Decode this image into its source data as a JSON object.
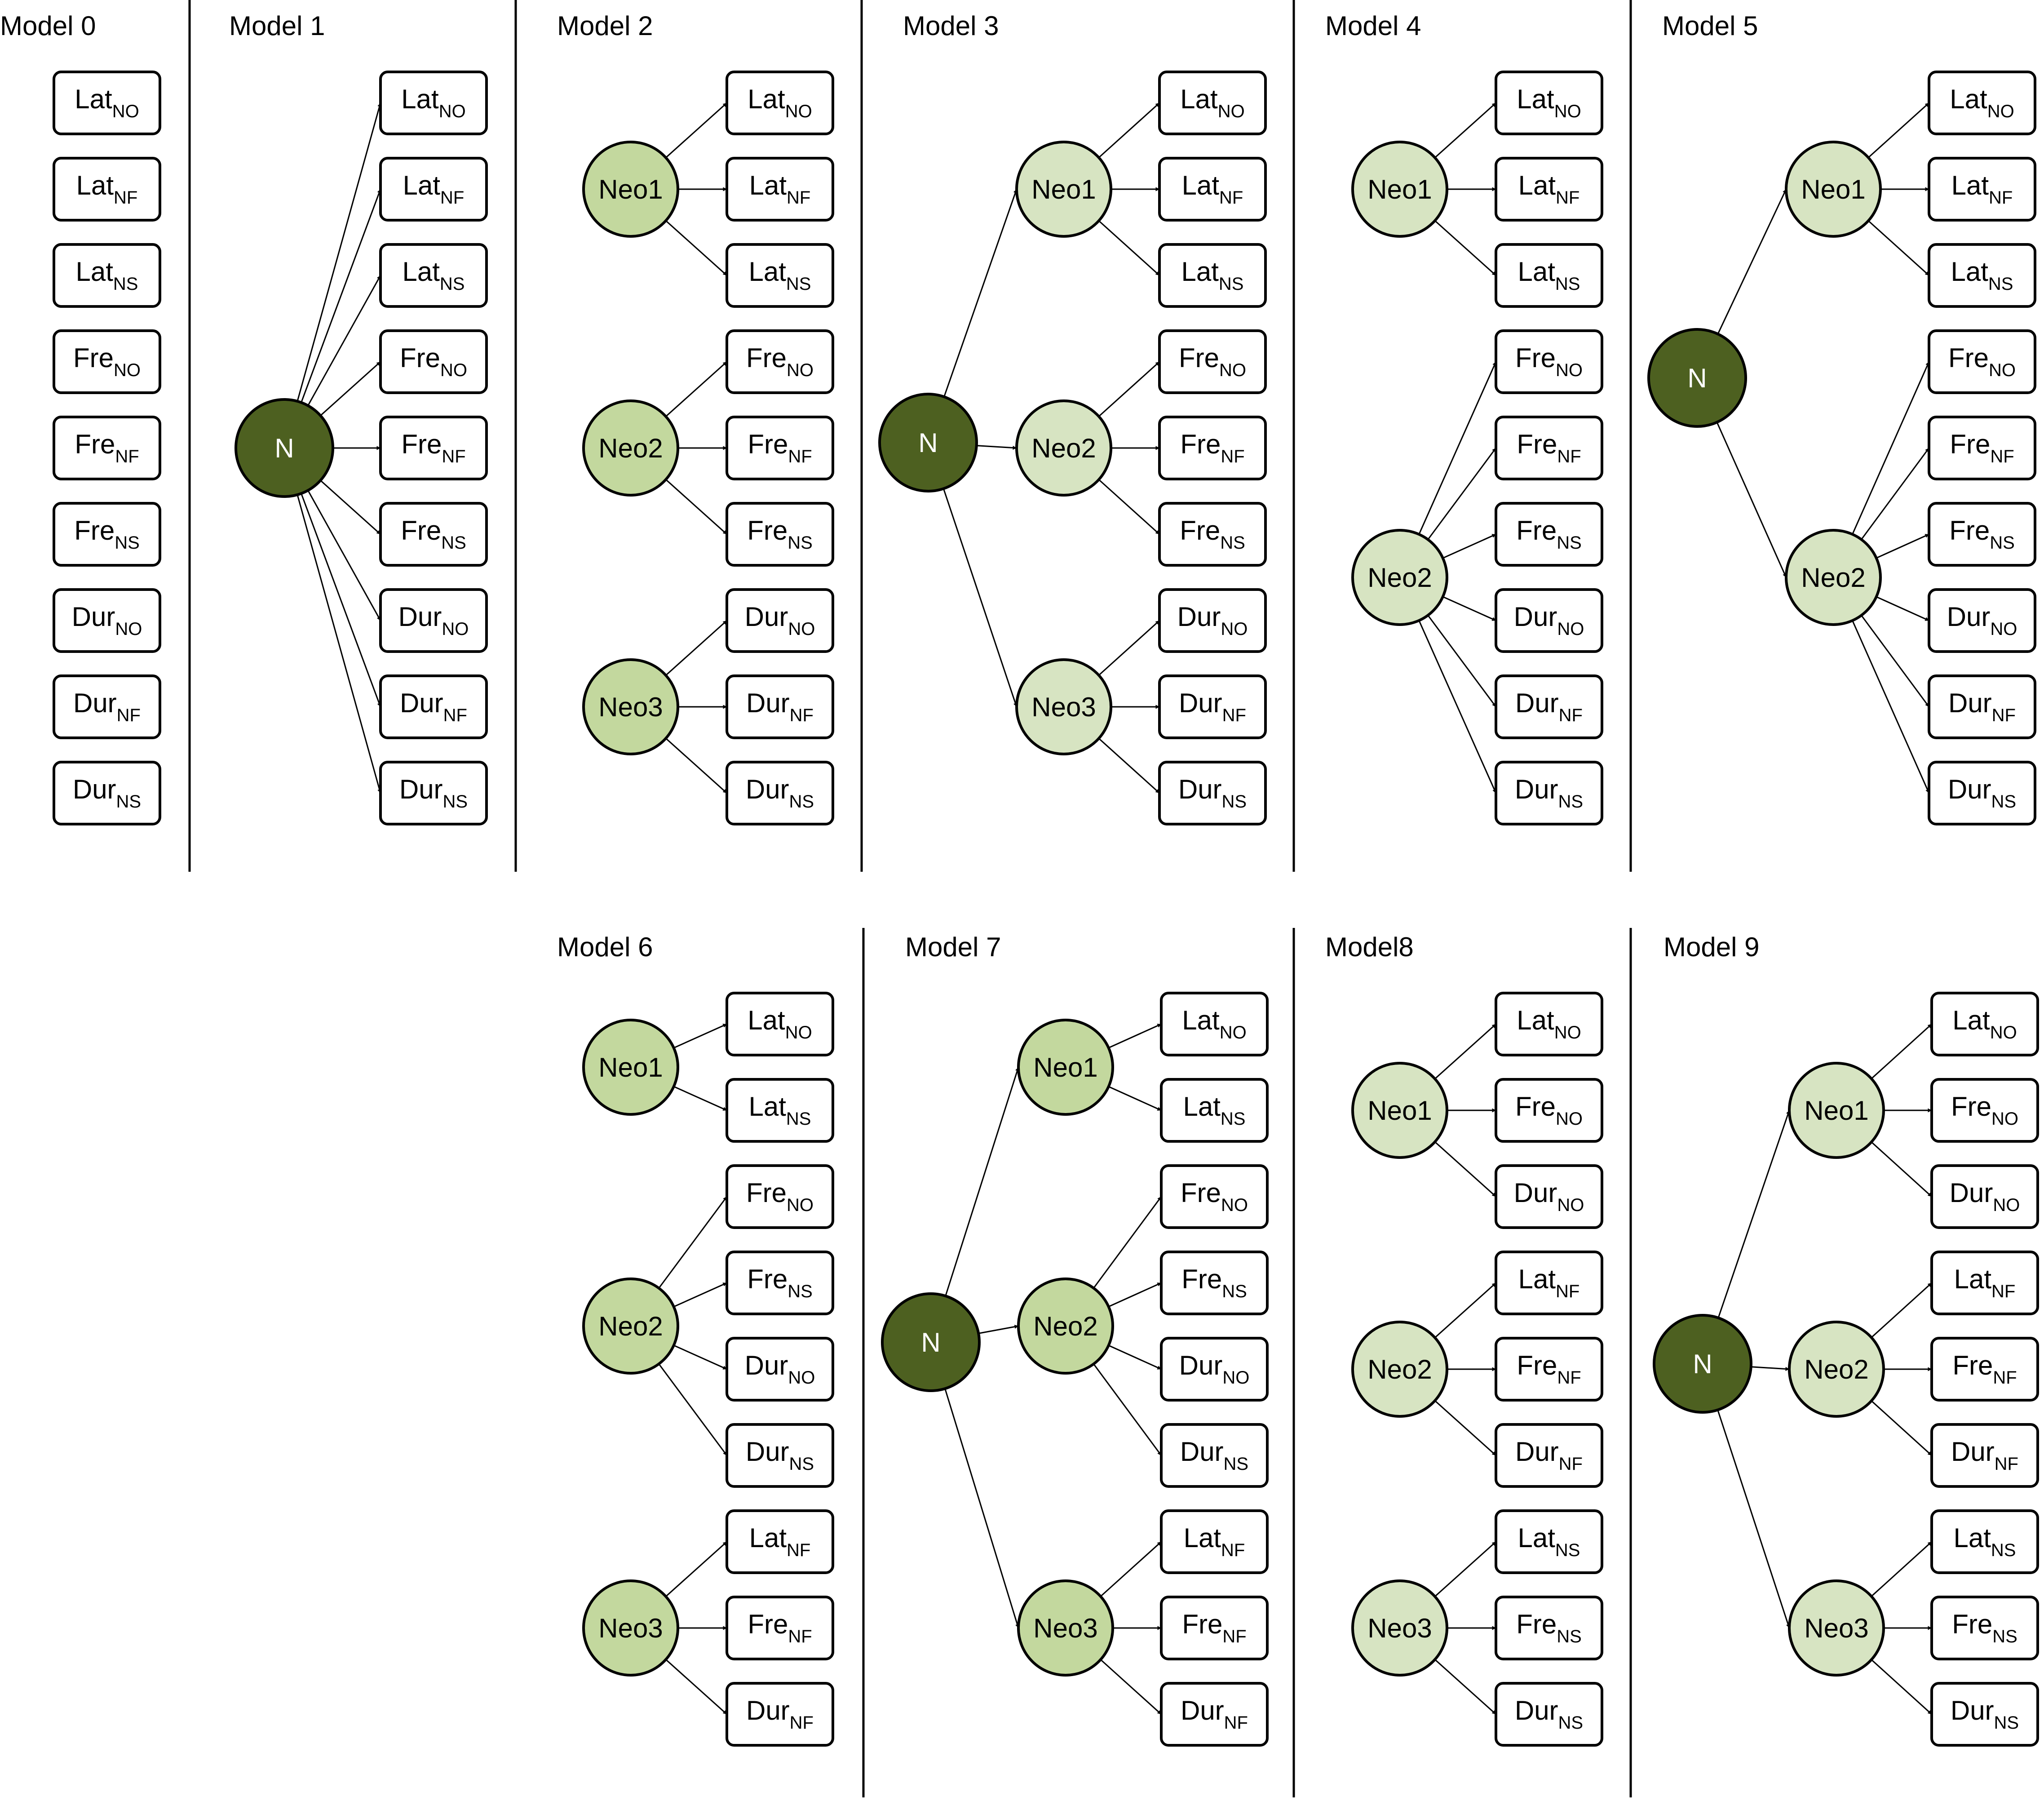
{
  "colors": {
    "general_node": "#4d6020",
    "neo_node_medium": "#c3d89e",
    "neo_node_light": "#d7e4c2",
    "stroke": "#000000",
    "box_fill": "#ffffff"
  },
  "models": [
    {
      "title": "Model 0",
      "general": null,
      "neo_style": "light",
      "factors": [],
      "indicators": [
        {
          "base": "Lat",
          "sub": "NO"
        },
        {
          "base": "Lat",
          "sub": "NF"
        },
        {
          "base": "Lat",
          "sub": "NS"
        },
        {
          "base": "Fre",
          "sub": "NO"
        },
        {
          "base": "Fre",
          "sub": "NF"
        },
        {
          "base": "Fre",
          "sub": "NS"
        },
        {
          "base": "Dur",
          "sub": "NO"
        },
        {
          "base": "Dur",
          "sub": "NF"
        },
        {
          "base": "Dur",
          "sub": "NS"
        }
      ]
    },
    {
      "title": "Model 1",
      "general": {
        "label": "N",
        "loads": "indicators"
      },
      "neo_style": "light",
      "factors": [],
      "indicators": [
        {
          "base": "Lat",
          "sub": "NO"
        },
        {
          "base": "Lat",
          "sub": "NF"
        },
        {
          "base": "Lat",
          "sub": "NS"
        },
        {
          "base": "Fre",
          "sub": "NO"
        },
        {
          "base": "Fre",
          "sub": "NF"
        },
        {
          "base": "Fre",
          "sub": "NS"
        },
        {
          "base": "Dur",
          "sub": "NO"
        },
        {
          "base": "Dur",
          "sub": "NF"
        },
        {
          "base": "Dur",
          "sub": "NS"
        }
      ]
    },
    {
      "title": "Model 2",
      "general": null,
      "neo_style": "medium",
      "factors": [
        {
          "label": "Neo1",
          "indicators": [
            0,
            1,
            2
          ]
        },
        {
          "label": "Neo2",
          "indicators": [
            3,
            4,
            5
          ]
        },
        {
          "label": "Neo3",
          "indicators": [
            6,
            7,
            8
          ]
        }
      ],
      "indicators": [
        {
          "base": "Lat",
          "sub": "NO"
        },
        {
          "base": "Lat",
          "sub": "NF"
        },
        {
          "base": "Lat",
          "sub": "NS"
        },
        {
          "base": "Fre",
          "sub": "NO"
        },
        {
          "base": "Fre",
          "sub": "NF"
        },
        {
          "base": "Fre",
          "sub": "NS"
        },
        {
          "base": "Dur",
          "sub": "NO"
        },
        {
          "base": "Dur",
          "sub": "NF"
        },
        {
          "base": "Dur",
          "sub": "NS"
        }
      ]
    },
    {
      "title": "Model 3",
      "general": {
        "label": "N",
        "loads": "factors"
      },
      "neo_style": "light",
      "factors": [
        {
          "label": "Neo1",
          "indicators": [
            0,
            1,
            2
          ]
        },
        {
          "label": "Neo2",
          "indicators": [
            3,
            4,
            5
          ]
        },
        {
          "label": "Neo3",
          "indicators": [
            6,
            7,
            8
          ]
        }
      ],
      "indicators": [
        {
          "base": "Lat",
          "sub": "NO"
        },
        {
          "base": "Lat",
          "sub": "NF"
        },
        {
          "base": "Lat",
          "sub": "NS"
        },
        {
          "base": "Fre",
          "sub": "NO"
        },
        {
          "base": "Fre",
          "sub": "NF"
        },
        {
          "base": "Fre",
          "sub": "NS"
        },
        {
          "base": "Dur",
          "sub": "NO"
        },
        {
          "base": "Dur",
          "sub": "NF"
        },
        {
          "base": "Dur",
          "sub": "NS"
        }
      ]
    },
    {
      "title": "Model 4",
      "general": null,
      "neo_style": "light",
      "factors": [
        {
          "label": "Neo1",
          "indicators": [
            0,
            1,
            2
          ]
        },
        {
          "label": "Neo2",
          "indicators": [
            3,
            4,
            5,
            6,
            7,
            8
          ]
        }
      ],
      "indicators": [
        {
          "base": "Lat",
          "sub": "NO"
        },
        {
          "base": "Lat",
          "sub": "NF"
        },
        {
          "base": "Lat",
          "sub": "NS"
        },
        {
          "base": "Fre",
          "sub": "NO"
        },
        {
          "base": "Fre",
          "sub": "NF"
        },
        {
          "base": "Fre",
          "sub": "NS"
        },
        {
          "base": "Dur",
          "sub": "NO"
        },
        {
          "base": "Dur",
          "sub": "NF"
        },
        {
          "base": "Dur",
          "sub": "NS"
        }
      ]
    },
    {
      "title": "Model 5",
      "general": {
        "label": "N",
        "loads": "factors"
      },
      "neo_style": "light",
      "factors": [
        {
          "label": "Neo1",
          "indicators": [
            0,
            1,
            2
          ]
        },
        {
          "label": "Neo2",
          "indicators": [
            3,
            4,
            5,
            6,
            7,
            8
          ]
        }
      ],
      "indicators": [
        {
          "base": "Lat",
          "sub": "NO"
        },
        {
          "base": "Lat",
          "sub": "NF"
        },
        {
          "base": "Lat",
          "sub": "NS"
        },
        {
          "base": "Fre",
          "sub": "NO"
        },
        {
          "base": "Fre",
          "sub": "NF"
        },
        {
          "base": "Fre",
          "sub": "NS"
        },
        {
          "base": "Dur",
          "sub": "NO"
        },
        {
          "base": "Dur",
          "sub": "NF"
        },
        {
          "base": "Dur",
          "sub": "NS"
        }
      ]
    },
    {
      "title": "Model 6",
      "general": null,
      "neo_style": "medium",
      "factors": [
        {
          "label": "Neo1",
          "indicators": [
            0,
            1
          ]
        },
        {
          "label": "Neo2",
          "indicators": [
            2,
            3,
            4,
            5
          ]
        },
        {
          "label": "Neo3",
          "indicators": [
            6,
            7,
            8
          ]
        }
      ],
      "indicators": [
        {
          "base": "Lat",
          "sub": "NO"
        },
        {
          "base": "Lat",
          "sub": "NS"
        },
        {
          "base": "Fre",
          "sub": "NO"
        },
        {
          "base": "Fre",
          "sub": "NS"
        },
        {
          "base": "Dur",
          "sub": "NO"
        },
        {
          "base": "Dur",
          "sub": "NS"
        },
        {
          "base": "Lat",
          "sub": "NF"
        },
        {
          "base": "Fre",
          "sub": "NF"
        },
        {
          "base": "Dur",
          "sub": "NF"
        }
      ]
    },
    {
      "title": "Model 7",
      "general": {
        "label": "N",
        "loads": "factors"
      },
      "neo_style": "medium",
      "factors": [
        {
          "label": "Neo1",
          "indicators": [
            0,
            1
          ]
        },
        {
          "label": "Neo2",
          "indicators": [
            2,
            3,
            4,
            5
          ]
        },
        {
          "label": "Neo3",
          "indicators": [
            6,
            7,
            8
          ]
        }
      ],
      "indicators": [
        {
          "base": "Lat",
          "sub": "NO"
        },
        {
          "base": "Lat",
          "sub": "NS"
        },
        {
          "base": "Fre",
          "sub": "NO"
        },
        {
          "base": "Fre",
          "sub": "NS"
        },
        {
          "base": "Dur",
          "sub": "NO"
        },
        {
          "base": "Dur",
          "sub": "NS"
        },
        {
          "base": "Lat",
          "sub": "NF"
        },
        {
          "base": "Fre",
          "sub": "NF"
        },
        {
          "base": "Dur",
          "sub": "NF"
        }
      ]
    },
    {
      "title": "Model8",
      "general": null,
      "neo_style": "light",
      "factors": [
        {
          "label": "Neo1",
          "indicators": [
            0,
            1,
            2
          ]
        },
        {
          "label": "Neo2",
          "indicators": [
            3,
            4,
            5
          ]
        },
        {
          "label": "Neo3",
          "indicators": [
            6,
            7,
            8
          ]
        }
      ],
      "indicators": [
        {
          "base": "Lat",
          "sub": "NO"
        },
        {
          "base": "Fre",
          "sub": "NO"
        },
        {
          "base": "Dur",
          "sub": "NO"
        },
        {
          "base": "Lat",
          "sub": "NF"
        },
        {
          "base": "Fre",
          "sub": "NF"
        },
        {
          "base": "Dur",
          "sub": "NF"
        },
        {
          "base": "Lat",
          "sub": "NS"
        },
        {
          "base": "Fre",
          "sub": "NS"
        },
        {
          "base": "Dur",
          "sub": "NS"
        }
      ]
    },
    {
      "title": "Model 9",
      "general": {
        "label": "N",
        "loads": "factors"
      },
      "neo_style": "light",
      "factors": [
        {
          "label": "Neo1",
          "indicators": [
            0,
            1,
            2
          ]
        },
        {
          "label": "Neo2",
          "indicators": [
            3,
            4,
            5
          ]
        },
        {
          "label": "Neo3",
          "indicators": [
            6,
            7,
            8
          ]
        }
      ],
      "indicators": [
        {
          "base": "Lat",
          "sub": "NO"
        },
        {
          "base": "Fre",
          "sub": "NO"
        },
        {
          "base": "Dur",
          "sub": "NO"
        },
        {
          "base": "Lat",
          "sub": "NF"
        },
        {
          "base": "Fre",
          "sub": "NF"
        },
        {
          "base": "Dur",
          "sub": "NF"
        },
        {
          "base": "Lat",
          "sub": "NS"
        },
        {
          "base": "Fre",
          "sub": "NS"
        },
        {
          "base": "Dur",
          "sub": "NS"
        }
      ]
    }
  ]
}
